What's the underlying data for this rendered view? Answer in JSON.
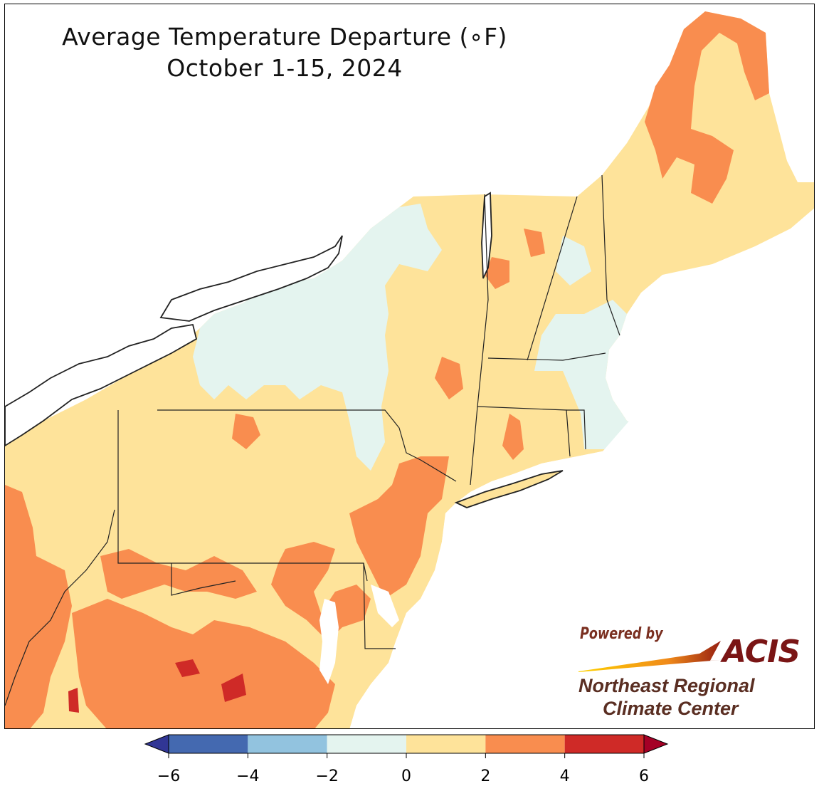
{
  "title": {
    "line1": "Average Temperature Departure (∘F)",
    "line2": "October 1-15, 2024"
  },
  "credit": {
    "powered_by": "Powered by",
    "acis": "ACIS",
    "org_line1": "Northeast Regional",
    "org_line2": "Climate Center"
  },
  "colorbar": {
    "bins": [
      {
        "from": -6,
        "to": -4,
        "color": "#4469b0"
      },
      {
        "from": -4,
        "to": -2,
        "color": "#92c3df"
      },
      {
        "from": -2,
        "to": 0,
        "color": "#e4f4ef"
      },
      {
        "from": 0,
        "to": 2,
        "color": "#fee39a"
      },
      {
        "from": 2,
        "to": 4,
        "color": "#f98d4f"
      },
      {
        "from": 4,
        "to": 6,
        "color": "#cf2a27"
      }
    ],
    "under_color": "#313695",
    "over_color": "#a50026",
    "ticks": [
      "−6",
      "−4",
      "−2",
      "0",
      "2",
      "4",
      "6"
    ]
  },
  "map_colors": {
    "water": "#ffffff",
    "near_normal": "#e4f4ef",
    "slightly_warm": "#fee39a",
    "warm": "#f98d4f",
    "very_warm": "#cf2a27",
    "cool": "#92c3df",
    "border": "#222222"
  }
}
